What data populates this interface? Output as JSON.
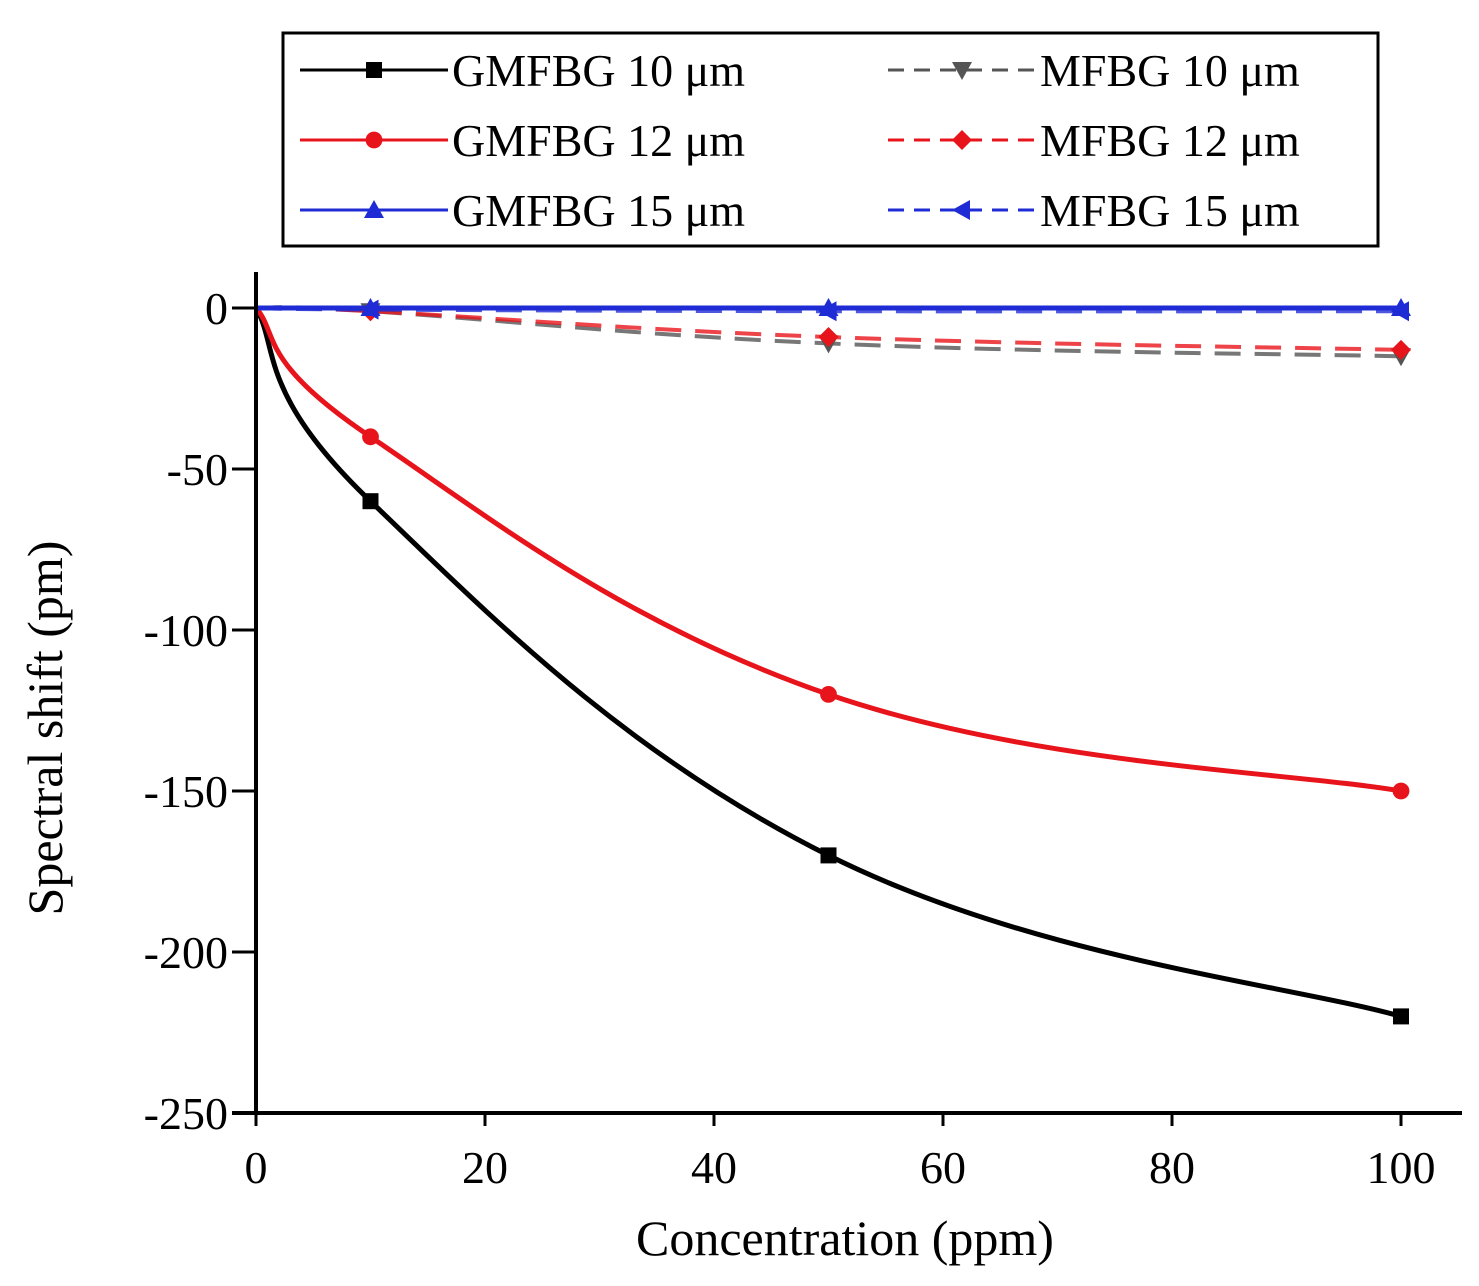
{
  "chart_data": {
    "type": "line",
    "title": "",
    "xlabel": "Concentration (ppm)",
    "ylabel": "Spectral shift (pm)",
    "xlim": [
      0,
      100
    ],
    "ylim": [
      -250,
      0
    ],
    "xticks": [
      0,
      20,
      40,
      60,
      80,
      100
    ],
    "yticks": [
      0,
      -50,
      -100,
      -150,
      -200,
      -250
    ],
    "xtick_labels": [
      "0",
      "20",
      "40",
      "60",
      "80",
      "100"
    ],
    "ytick_labels": [
      "0",
      "-50",
      "-100",
      "-150",
      "-200",
      "-250"
    ],
    "grid": false,
    "legend_position": "top",
    "series": [
      {
        "name": "GMFBG 10 μm",
        "color": "#000000",
        "dash": "solid",
        "marker": "square",
        "x": [
          0,
          10,
          50,
          100
        ],
        "y": [
          0,
          -60,
          -170,
          -220
        ]
      },
      {
        "name": "MFBG 10 μm",
        "color": "#555555",
        "dash": "dashed",
        "marker": "triangle-down",
        "x": [
          0,
          10,
          50,
          100
        ],
        "y": [
          0,
          -1,
          -11,
          -15
        ]
      },
      {
        "name": "GMFBG 12 μm",
        "color": "#e8141b",
        "dash": "solid",
        "marker": "circle",
        "x": [
          0,
          10,
          50,
          100
        ],
        "y": [
          0,
          -40,
          -120,
          -150
        ]
      },
      {
        "name": "MFBG 12 μm",
        "color": "#e8141b",
        "dash": "dashed",
        "marker": "diamond",
        "x": [
          0,
          10,
          50,
          100
        ],
        "y": [
          0,
          -1,
          -9,
          -13
        ]
      },
      {
        "name": "GMFBG 15 μm",
        "color": "#1f2cd6",
        "dash": "solid",
        "marker": "triangle-up",
        "x": [
          0,
          10,
          50,
          100
        ],
        "y": [
          0,
          0,
          0,
          0
        ]
      },
      {
        "name": "MFBG 15 μm",
        "color": "#1f2cd6",
        "dash": "dashed",
        "marker": "triangle-left",
        "x": [
          0,
          10,
          50,
          100
        ],
        "y": [
          0,
          -0.5,
          -1,
          -1
        ]
      }
    ]
  }
}
